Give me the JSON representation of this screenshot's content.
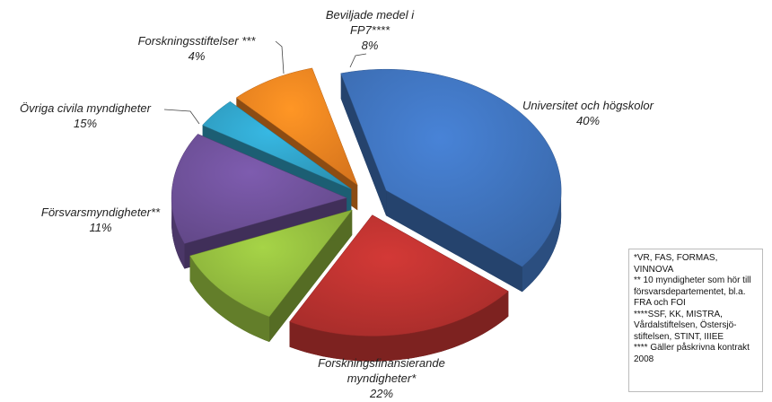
{
  "chart_data": {
    "type": "pie",
    "categories": [
      "Universitet och högskolor",
      "Forskningsfinansierande myndigheter*",
      "Försvarsmyndigheter**",
      "Övriga civila myndigheter",
      "Forskningsstiftelser ***",
      "Beviljade medel i FP7****"
    ],
    "values": [
      40,
      22,
      11,
      15,
      4,
      8
    ],
    "value_labels": [
      "40%",
      "22%",
      "11%",
      "15%",
      "4%",
      "8%"
    ],
    "colors": [
      "#3d6fb6",
      "#b3302e",
      "#8db43c",
      "#6b4e94",
      "#2f9cc0",
      "#ea7f1f"
    ],
    "notes": [
      "*VR, FAS, FORMAS, VINNOVA",
      "** 10 myndigheter som hör till försvarsdepartementet, bl.a. FRA och FOI",
      "****SSF, KK, MISTRA, Vårdalstiftelsen, Östersjö-stiftelsen, STINT, IIIEE",
      "**** Gäller påskrivna kontrakt 2008"
    ]
  }
}
